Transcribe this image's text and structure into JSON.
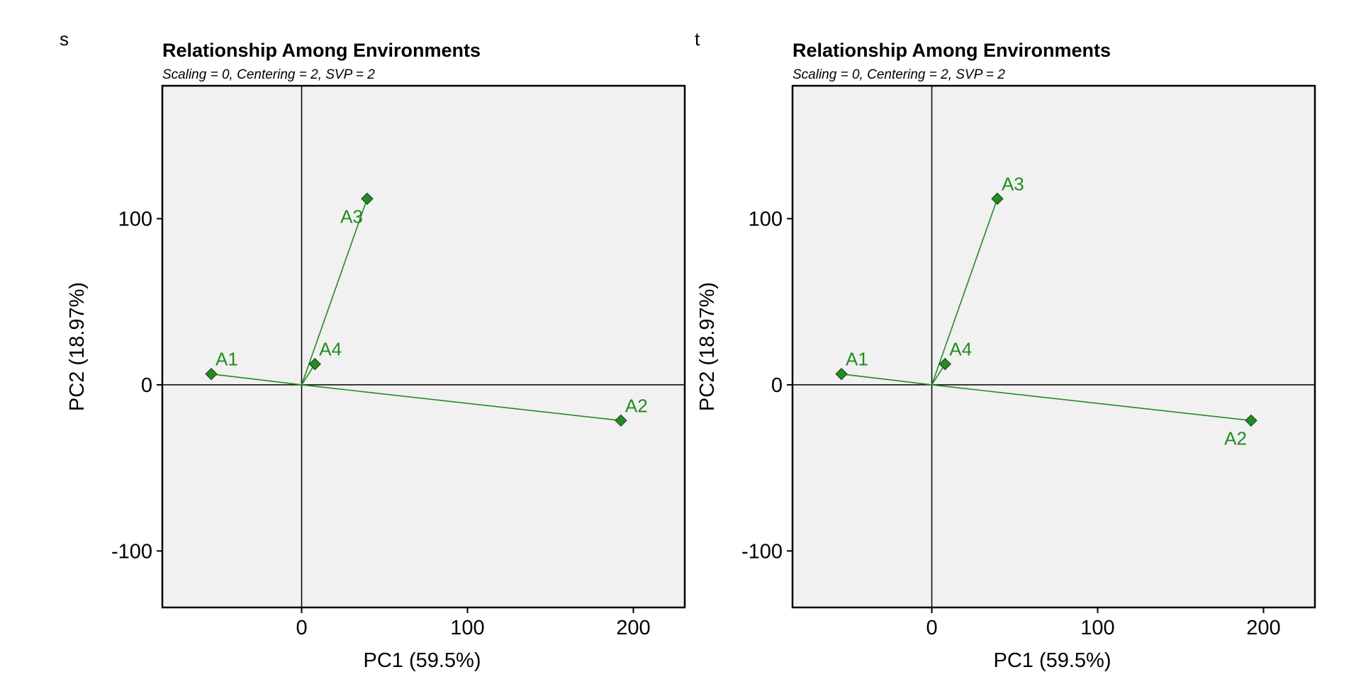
{
  "colors": {
    "series": "#228B22",
    "panel_bg": "#F1F1F1",
    "axis": "#000000"
  },
  "chart_data": [
    {
      "type": "scatter",
      "panel_label": "s",
      "title": "Relationship Among Environments",
      "subtitle": "Scaling = 0, Centering = 2, SVP = 2",
      "xlabel": "PC1 (59.5%)",
      "ylabel": "PC2 (18.97%)",
      "xlim": [
        -84,
        231
      ],
      "ylim": [
        -134,
        180
      ],
      "x_ticks": [
        0,
        100,
        200
      ],
      "y_ticks": [
        -100,
        0,
        100
      ],
      "grid": false,
      "vectors_from_origin": true,
      "point_marker": "diamond",
      "points": [
        {
          "label": "A1",
          "x": -54.5,
          "y": 6.5,
          "label_pos": "upper-right"
        },
        {
          "label": "A2",
          "x": 192.5,
          "y": -21.5,
          "label_pos": "upper-right"
        },
        {
          "label": "A3",
          "x": 39.5,
          "y": 112,
          "label_pos": "lower-left"
        },
        {
          "label": "A4",
          "x": 8,
          "y": 12.5,
          "label_pos": "upper-right"
        }
      ]
    },
    {
      "type": "scatter",
      "panel_label": "t",
      "title": "Relationship Among Environments",
      "subtitle": "Scaling = 0, Centering = 2, SVP = 2",
      "xlabel": "PC1 (59.5%)",
      "ylabel": "PC2 (18.97%)",
      "xlim": [
        -84,
        231
      ],
      "ylim": [
        -134,
        180
      ],
      "x_ticks": [
        0,
        100,
        200
      ],
      "y_ticks": [
        -100,
        0,
        100
      ],
      "grid": false,
      "vectors_from_origin": true,
      "point_marker": "diamond",
      "points": [
        {
          "label": "A1",
          "x": -54.5,
          "y": 6.5,
          "label_pos": "upper-right"
        },
        {
          "label": "A2",
          "x": 192.5,
          "y": -21.5,
          "label_pos": "lower-left"
        },
        {
          "label": "A3",
          "x": 39.5,
          "y": 112,
          "label_pos": "upper-right"
        },
        {
          "label": "A4",
          "x": 8,
          "y": 12.5,
          "label_pos": "upper-right"
        }
      ]
    }
  ]
}
